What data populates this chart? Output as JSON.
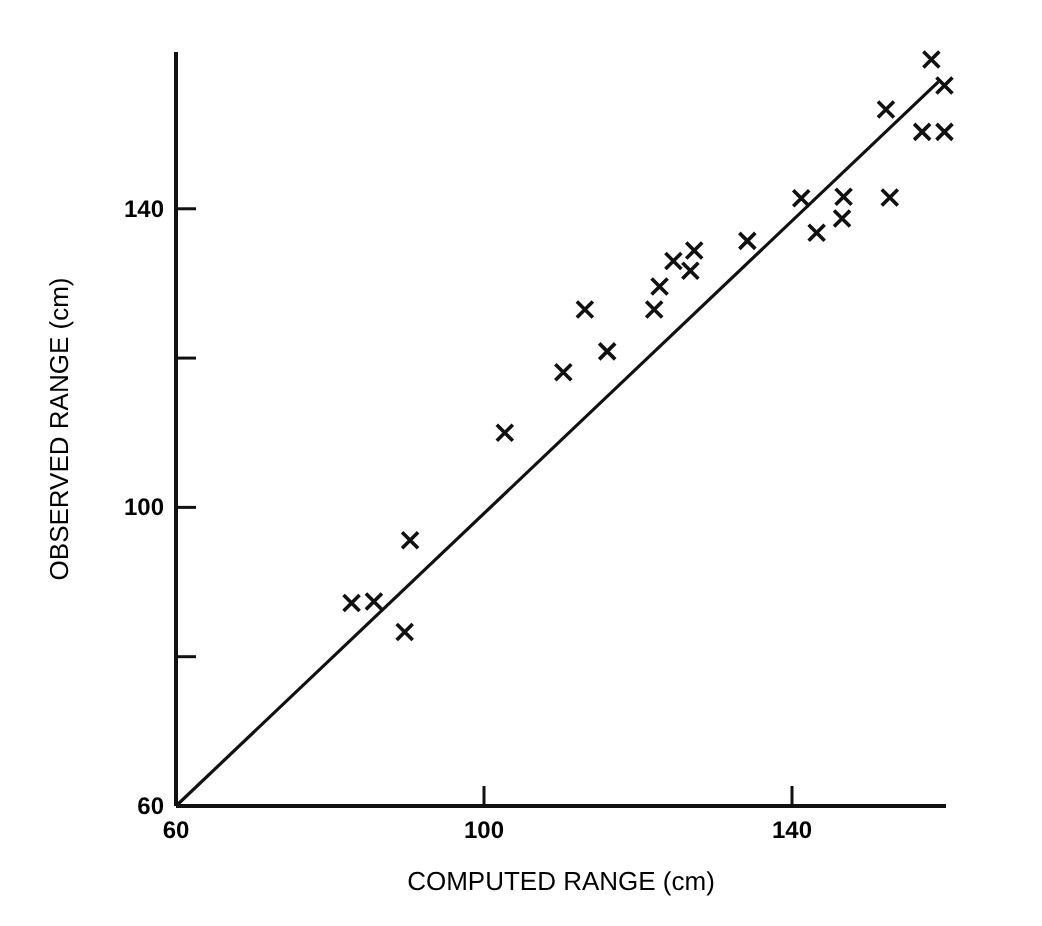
{
  "chart_data": {
    "type": "scatter",
    "xlabel": "COMPUTED RANGE  (cm)",
    "ylabel": "OBSERVED RANGE  (cm)",
    "xlim": [
      60,
      160
    ],
    "ylim": [
      60,
      161
    ],
    "xticks": [
      60,
      100,
      140
    ],
    "yticks": [
      60,
      {
        "value": 80,
        "label": null
      },
      100,
      {
        "value": 120,
        "label": null
      },
      140
    ],
    "grid": false,
    "series": [
      {
        "color": "#111111",
        "marker": "cross",
        "x": [
          82.8,
          85.7,
          89.7,
          90.4,
          102.7,
          110.3,
          113.1,
          116,
          122.1,
          122.8,
          124.6,
          126.8,
          127.3,
          134.2,
          141.2,
          143.2,
          146.5,
          146.7,
          152.7,
          152.2,
          156.9,
          159.8,
          158.1,
          159.8
        ],
        "values": [
          87.2,
          87.4,
          83.3,
          95.6,
          110,
          118.1,
          126.5,
          120.9,
          126.5,
          129.6,
          133,
          131.7,
          134.4,
          135.7,
          141.4,
          136.8,
          138.7,
          141.6,
          141.5,
          153.3,
          150.3,
          150.3,
          160,
          156.5
        ]
      },
      {
        "type": "line",
        "color": "#111111",
        "marker": "none",
        "line_style": "solid",
        "x": [
          60,
          159
        ],
        "values": [
          60,
          157
        ]
      }
    ]
  }
}
